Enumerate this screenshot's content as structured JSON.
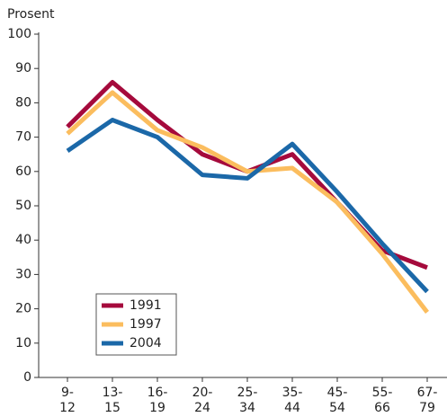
{
  "chart_data": {
    "type": "line",
    "y_label": "Prosent",
    "categories": [
      "9-12",
      "13-15",
      "16-19",
      "20-24",
      "25-34",
      "35-44",
      "45-54",
      "55-66",
      "67-79"
    ],
    "series": [
      {
        "name": "1991",
        "color": "#a50a3c",
        "values": [
          73,
          86,
          75,
          65,
          60,
          65,
          51,
          37,
          32
        ]
      },
      {
        "name": "1997",
        "color": "#fbbd5e",
        "values": [
          71,
          83,
          72,
          67,
          60,
          61,
          51,
          36,
          19
        ]
      },
      {
        "name": "2004",
        "color": "#1b68a8",
        "values": [
          66,
          75,
          70,
          59,
          58,
          68,
          54,
          39,
          25
        ]
      }
    ],
    "ylim": [
      0,
      100
    ],
    "yticks": [
      0,
      10,
      20,
      30,
      40,
      50,
      60,
      70,
      80,
      90,
      100
    ],
    "grid": false,
    "legend": "lower left"
  }
}
